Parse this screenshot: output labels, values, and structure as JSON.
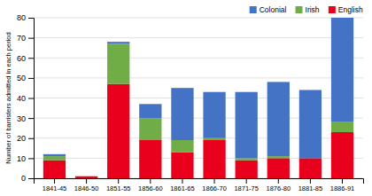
{
  "chart_data": {
    "type": "bar",
    "stacked": true,
    "categories": [
      "1841-45",
      "1846-50",
      "1851-55",
      "1856-60",
      "1861-65",
      "1866-70",
      "1871-75",
      "1876-80",
      "1881-85",
      "1886-91"
    ],
    "series": [
      {
        "name": "English",
        "color": "#e8001c",
        "values": [
          9,
          1,
          47,
          19,
          13,
          19,
          9,
          10,
          10,
          23
        ]
      },
      {
        "name": "Irish",
        "color": "#70ad47",
        "values": [
          2,
          0,
          20,
          11,
          6,
          1,
          1,
          1,
          0,
          5
        ]
      },
      {
        "name": "Colonial",
        "color": "#4472c4",
        "values": [
          1,
          0,
          1,
          7,
          26,
          23,
          33,
          37,
          34,
          52
        ]
      }
    ],
    "y_label": "Number of barristers admitted in each period",
    "ylim": [
      0,
      80
    ],
    "yticks": [
      0,
      10,
      20,
      30,
      40,
      50,
      60,
      70,
      80
    ],
    "grid": true,
    "legend": "upper right"
  }
}
